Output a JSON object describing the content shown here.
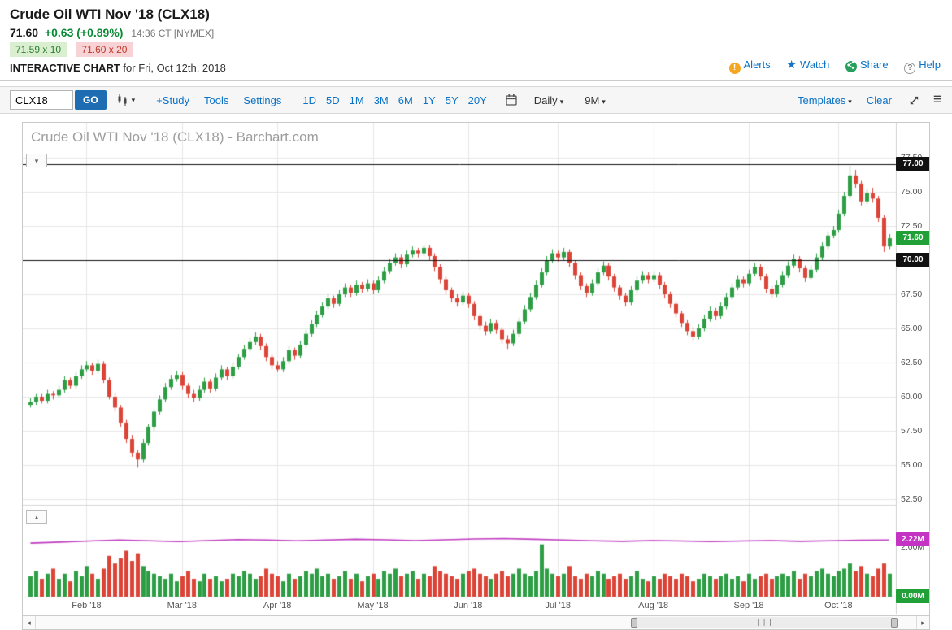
{
  "header": {
    "title": "Crude Oil WTI Nov '18 (CLX18)",
    "last": "71.60",
    "change": "+0.63 (+0.89%)",
    "time": "14:36 CT [NYMEX]",
    "bid": "71.59 x 10",
    "ask": "71.60 x 20",
    "page_label": "INTERACTIVE CHART",
    "page_sub": "for Fri, Oct 12th, 2018",
    "links": {
      "alerts": "Alerts",
      "watch": "Watch",
      "share": "Share",
      "help": "Help"
    }
  },
  "toolbar": {
    "symbol_value": "CLX18",
    "go_label": "GO",
    "study": "+Study",
    "tools": "Tools",
    "settings": "Settings",
    "ranges": [
      "1D",
      "5D",
      "1M",
      "3M",
      "6M",
      "1Y",
      "5Y",
      "20Y"
    ],
    "frequency": "Daily",
    "span": "9M",
    "templates": "Templates",
    "clear": "Clear"
  },
  "chart": {
    "watermark": "Crude Oil WTI Nov '18 (CLX18) - Barchart.com",
    "y_ticks": [
      "77.50",
      "75.00",
      "72.50",
      "70.00",
      "67.50",
      "65.00",
      "62.50",
      "60.00",
      "57.50",
      "55.00",
      "52.50"
    ],
    "x_labels": [
      "Feb '18",
      "Mar '18",
      "Apr '18",
      "May '18",
      "Jun '18",
      "Jul '18",
      "Aug '18",
      "Sep '18",
      "Oct '18"
    ],
    "badges": {
      "high": "77.00",
      "last": "71.60",
      "line": "70.00"
    },
    "volume_badges": {
      "oi": "2.22M",
      "mid": "2.00M",
      "zero": "0.00M"
    }
  },
  "chart_data": {
    "type": "candlestick+volume",
    "title": "Crude Oil WTI Nov '18 (CLX18) - Barchart.com",
    "frequency": "Daily",
    "visible_span": "9M",
    "price_axis": {
      "min": 52.5,
      "max": 77.5,
      "tick_step": 2.5
    },
    "volume_axis": {
      "min": 0,
      "max": 3.6,
      "unit": "millions"
    },
    "hlines": [
      77.0,
      70.0
    ],
    "last_price": 71.6,
    "up_color": "#2e9e45",
    "down_color": "#dc4437",
    "oi_color": "#c03cc0",
    "month_tick_indices": [
      10,
      27,
      44,
      61,
      78,
      94,
      111,
      128,
      144
    ],
    "candles": [
      [
        59.4,
        59.9,
        59.2,
        59.6
      ],
      [
        59.6,
        60.2,
        59.4,
        60.0
      ],
      [
        60.0,
        60.2,
        59.5,
        59.7
      ],
      [
        59.7,
        60.5,
        59.5,
        60.2
      ],
      [
        60.2,
        60.4,
        59.8,
        60.1
      ],
      [
        60.1,
        60.8,
        59.9,
        60.5
      ],
      [
        60.5,
        61.5,
        60.3,
        61.2
      ],
      [
        61.2,
        61.4,
        60.6,
        60.8
      ],
      [
        60.8,
        61.8,
        60.6,
        61.5
      ],
      [
        61.5,
        62.3,
        61.3,
        62.0
      ],
      [
        62.0,
        62.6,
        61.8,
        62.3
      ],
      [
        62.3,
        62.5,
        61.6,
        61.9
      ],
      [
        61.9,
        62.7,
        61.7,
        62.4
      ],
      [
        62.4,
        62.6,
        61.0,
        61.2
      ],
      [
        61.2,
        61.4,
        59.8,
        60.0
      ],
      [
        60.0,
        60.3,
        58.9,
        59.2
      ],
      [
        59.2,
        59.4,
        57.8,
        58.1
      ],
      [
        58.1,
        58.3,
        56.6,
        56.9
      ],
      [
        56.9,
        57.2,
        55.6,
        55.9
      ],
      [
        55.9,
        56.1,
        54.8,
        55.4
      ],
      [
        55.4,
        56.9,
        55.2,
        56.6
      ],
      [
        56.6,
        58.0,
        56.4,
        57.8
      ],
      [
        57.8,
        59.1,
        57.5,
        58.9
      ],
      [
        58.9,
        60.1,
        58.7,
        59.8
      ],
      [
        59.8,
        61.0,
        59.6,
        60.7
      ],
      [
        60.7,
        61.6,
        60.5,
        61.3
      ],
      [
        61.3,
        61.9,
        61.1,
        61.6
      ],
      [
        61.6,
        61.8,
        60.5,
        60.8
      ],
      [
        60.8,
        61.0,
        59.9,
        60.2
      ],
      [
        60.2,
        60.5,
        59.6,
        59.9
      ],
      [
        59.9,
        60.8,
        59.7,
        60.5
      ],
      [
        60.5,
        61.4,
        60.3,
        61.1
      ],
      [
        61.1,
        61.3,
        60.3,
        60.6
      ],
      [
        60.6,
        61.7,
        60.4,
        61.4
      ],
      [
        61.4,
        62.3,
        61.2,
        62.0
      ],
      [
        62.0,
        62.2,
        61.2,
        61.5
      ],
      [
        61.5,
        62.5,
        61.3,
        62.2
      ],
      [
        62.2,
        63.1,
        62.0,
        62.9
      ],
      [
        62.9,
        63.8,
        62.7,
        63.5
      ],
      [
        63.5,
        64.3,
        63.3,
        64.0
      ],
      [
        64.0,
        64.7,
        63.8,
        64.4
      ],
      [
        64.4,
        64.6,
        63.4,
        63.7
      ],
      [
        63.7,
        63.9,
        62.6,
        62.9
      ],
      [
        62.9,
        63.1,
        62.0,
        62.3
      ],
      [
        62.3,
        62.6,
        61.8,
        62.0
      ],
      [
        62.0,
        62.9,
        61.8,
        62.6
      ],
      [
        62.6,
        63.7,
        62.4,
        63.4
      ],
      [
        63.4,
        63.6,
        62.7,
        63.0
      ],
      [
        63.0,
        64.1,
        62.8,
        63.8
      ],
      [
        63.8,
        64.9,
        63.6,
        64.6
      ],
      [
        64.6,
        65.6,
        64.4,
        65.3
      ],
      [
        65.3,
        66.3,
        65.1,
        66.0
      ],
      [
        66.0,
        66.9,
        65.8,
        66.6
      ],
      [
        66.6,
        67.5,
        66.4,
        67.2
      ],
      [
        67.2,
        67.4,
        66.5,
        66.8
      ],
      [
        66.8,
        67.8,
        66.6,
        67.5
      ],
      [
        67.5,
        68.3,
        67.3,
        68.0
      ],
      [
        68.0,
        68.2,
        67.3,
        67.6
      ],
      [
        67.6,
        68.5,
        67.4,
        68.2
      ],
      [
        68.2,
        68.4,
        67.6,
        67.9
      ],
      [
        67.9,
        68.6,
        67.7,
        68.3
      ],
      [
        68.3,
        68.5,
        67.5,
        67.8
      ],
      [
        67.8,
        68.8,
        67.6,
        68.5
      ],
      [
        68.5,
        69.5,
        68.3,
        69.2
      ],
      [
        69.2,
        70.1,
        69.0,
        69.8
      ],
      [
        69.8,
        70.5,
        69.6,
        70.2
      ],
      [
        70.2,
        70.4,
        69.4,
        69.7
      ],
      [
        69.7,
        70.7,
        69.5,
        70.4
      ],
      [
        70.4,
        71.0,
        70.2,
        70.7
      ],
      [
        70.7,
        70.9,
        70.2,
        70.5
      ],
      [
        70.5,
        71.1,
        70.3,
        70.9
      ],
      [
        70.9,
        71.1,
        70.0,
        70.3
      ],
      [
        70.3,
        70.5,
        69.2,
        69.5
      ],
      [
        69.5,
        69.7,
        68.3,
        68.6
      ],
      [
        68.6,
        68.8,
        67.5,
        67.8
      ],
      [
        67.8,
        68.0,
        66.9,
        67.2
      ],
      [
        67.2,
        67.5,
        66.6,
        66.9
      ],
      [
        66.9,
        67.7,
        66.7,
        67.4
      ],
      [
        67.4,
        67.6,
        66.5,
        66.8
      ],
      [
        66.8,
        67.0,
        65.6,
        65.9
      ],
      [
        65.9,
        66.1,
        64.9,
        65.2
      ],
      [
        65.2,
        65.5,
        64.5,
        64.8
      ],
      [
        64.8,
        65.7,
        64.6,
        65.4
      ],
      [
        65.4,
        65.6,
        64.6,
        64.9
      ],
      [
        64.9,
        65.1,
        63.9,
        64.2
      ],
      [
        64.2,
        64.5,
        63.5,
        63.9
      ],
      [
        63.9,
        64.9,
        63.7,
        64.6
      ],
      [
        64.6,
        65.8,
        64.4,
        65.5
      ],
      [
        65.5,
        66.7,
        65.3,
        66.4
      ],
      [
        66.4,
        67.6,
        66.2,
        67.3
      ],
      [
        67.3,
        68.5,
        67.1,
        68.2
      ],
      [
        68.2,
        69.4,
        68.0,
        69.1
      ],
      [
        69.1,
        70.3,
        68.9,
        70.0
      ],
      [
        70.0,
        70.8,
        69.8,
        70.5
      ],
      [
        70.5,
        70.7,
        69.9,
        70.2
      ],
      [
        70.2,
        70.9,
        70.0,
        70.6
      ],
      [
        70.6,
        70.8,
        69.5,
        69.8
      ],
      [
        69.8,
        70.0,
        68.6,
        68.9
      ],
      [
        68.9,
        69.1,
        67.8,
        68.1
      ],
      [
        68.1,
        68.3,
        67.3,
        67.6
      ],
      [
        67.6,
        68.6,
        67.4,
        68.3
      ],
      [
        68.3,
        69.4,
        68.1,
        69.1
      ],
      [
        69.1,
        69.9,
        68.9,
        69.6
      ],
      [
        69.6,
        69.8,
        68.5,
        68.8
      ],
      [
        68.8,
        69.0,
        67.7,
        68.0
      ],
      [
        68.0,
        68.2,
        67.1,
        67.4
      ],
      [
        67.4,
        67.6,
        66.6,
        66.9
      ],
      [
        66.9,
        68.1,
        66.7,
        67.8
      ],
      [
        67.8,
        68.8,
        67.6,
        68.5
      ],
      [
        68.5,
        69.2,
        68.3,
        68.9
      ],
      [
        68.9,
        69.1,
        68.3,
        68.6
      ],
      [
        68.6,
        69.2,
        68.4,
        68.9
      ],
      [
        68.9,
        69.1,
        67.9,
        68.2
      ],
      [
        68.2,
        68.4,
        67.2,
        67.5
      ],
      [
        67.5,
        67.7,
        66.5,
        66.8
      ],
      [
        66.8,
        67.0,
        65.8,
        66.1
      ],
      [
        66.1,
        66.3,
        65.1,
        65.4
      ],
      [
        65.4,
        65.6,
        64.5,
        64.8
      ],
      [
        64.8,
        65.1,
        64.1,
        64.4
      ],
      [
        64.4,
        65.3,
        64.2,
        65.0
      ],
      [
        65.0,
        66.0,
        64.8,
        65.7
      ],
      [
        65.7,
        66.6,
        65.5,
        66.3
      ],
      [
        66.3,
        66.5,
        65.6,
        65.9
      ],
      [
        65.9,
        66.9,
        65.7,
        66.6
      ],
      [
        66.6,
        67.6,
        66.4,
        67.3
      ],
      [
        67.3,
        68.3,
        67.1,
        68.0
      ],
      [
        68.0,
        68.9,
        67.8,
        68.6
      ],
      [
        68.6,
        68.8,
        68.0,
        68.3
      ],
      [
        68.3,
        69.3,
        68.1,
        69.0
      ],
      [
        69.0,
        69.8,
        68.8,
        69.5
      ],
      [
        69.5,
        69.7,
        68.5,
        68.8
      ],
      [
        68.8,
        69.0,
        67.6,
        67.9
      ],
      [
        67.9,
        68.1,
        67.2,
        67.5
      ],
      [
        67.5,
        68.5,
        67.3,
        68.2
      ],
      [
        68.2,
        69.2,
        68.0,
        68.9
      ],
      [
        68.9,
        69.9,
        68.7,
        69.6
      ],
      [
        69.6,
        70.4,
        69.4,
        70.1
      ],
      [
        70.1,
        70.3,
        69.1,
        69.4
      ],
      [
        69.4,
        69.6,
        68.4,
        68.7
      ],
      [
        68.7,
        69.6,
        68.5,
        69.3
      ],
      [
        69.3,
        70.5,
        69.1,
        70.2
      ],
      [
        70.2,
        71.3,
        70.0,
        71.0
      ],
      [
        71.0,
        72.1,
        70.8,
        71.8
      ],
      [
        71.8,
        72.5,
        71.6,
        72.2
      ],
      [
        72.2,
        73.7,
        72.0,
        73.4
      ],
      [
        73.4,
        75.0,
        73.2,
        74.7
      ],
      [
        74.7,
        76.9,
        74.5,
        76.2
      ],
      [
        76.2,
        76.6,
        75.3,
        75.6
      ],
      [
        75.6,
        75.8,
        74.0,
        74.3
      ],
      [
        74.3,
        75.2,
        74.1,
        74.9
      ],
      [
        74.9,
        75.3,
        74.2,
        74.5
      ],
      [
        74.5,
        74.7,
        72.8,
        73.1
      ],
      [
        73.1,
        73.3,
        70.6,
        71.0
      ],
      [
        71.0,
        71.9,
        70.8,
        71.6
      ]
    ],
    "volume_millions": [
      0.8,
      1.0,
      0.7,
      0.9,
      1.1,
      0.7,
      0.9,
      0.6,
      1.0,
      0.8,
      1.2,
      0.9,
      0.7,
      1.1,
      1.6,
      1.3,
      1.5,
      1.8,
      1.4,
      1.7,
      1.2,
      1.0,
      0.9,
      0.8,
      0.7,
      0.9,
      0.6,
      0.8,
      1.0,
      0.7,
      0.6,
      0.9,
      0.7,
      0.8,
      0.6,
      0.7,
      0.9,
      0.8,
      1.0,
      0.9,
      0.7,
      0.8,
      1.1,
      0.9,
      0.8,
      0.6,
      0.9,
      0.7,
      0.8,
      1.0,
      0.9,
      1.1,
      0.8,
      0.9,
      0.7,
      0.8,
      1.0,
      0.7,
      0.9,
      0.6,
      0.8,
      0.9,
      0.7,
      1.0,
      0.9,
      1.1,
      0.8,
      0.9,
      1.0,
      0.7,
      0.9,
      0.8,
      1.2,
      1.0,
      0.9,
      0.8,
      0.7,
      0.9,
      1.0,
      1.1,
      0.9,
      0.8,
      0.7,
      0.9,
      1.0,
      0.8,
      0.9,
      1.1,
      0.9,
      0.8,
      1.0,
      2.05,
      1.1,
      0.9,
      0.8,
      0.9,
      1.2,
      0.8,
      0.7,
      0.9,
      0.8,
      1.0,
      0.9,
      0.7,
      0.8,
      0.9,
      0.7,
      0.8,
      1.0,
      0.7,
      0.6,
      0.8,
      0.7,
      0.9,
      0.8,
      0.7,
      0.9,
      0.8,
      0.6,
      0.7,
      0.9,
      0.8,
      0.7,
      0.8,
      0.9,
      0.7,
      0.8,
      0.6,
      0.9,
      0.7,
      0.8,
      0.9,
      0.7,
      0.8,
      0.9,
      0.8,
      1.0,
      0.7,
      0.9,
      0.8,
      1.0,
      1.1,
      0.9,
      0.8,
      1.0,
      1.1,
      1.3,
      1.0,
      1.2,
      0.9,
      0.8,
      1.1,
      1.3,
      0.9
    ],
    "open_interest_millions": [
      2.1,
      2.14,
      2.18,
      2.22,
      2.19,
      2.16,
      2.2,
      2.24,
      2.22,
      2.19,
      2.22,
      2.25,
      2.23,
      2.2,
      2.23,
      2.26,
      2.28,
      2.25,
      2.22,
      2.19,
      2.17,
      2.2,
      2.18,
      2.16,
      2.18,
      2.2,
      2.17,
      2.19,
      2.21,
      2.22
    ]
  }
}
